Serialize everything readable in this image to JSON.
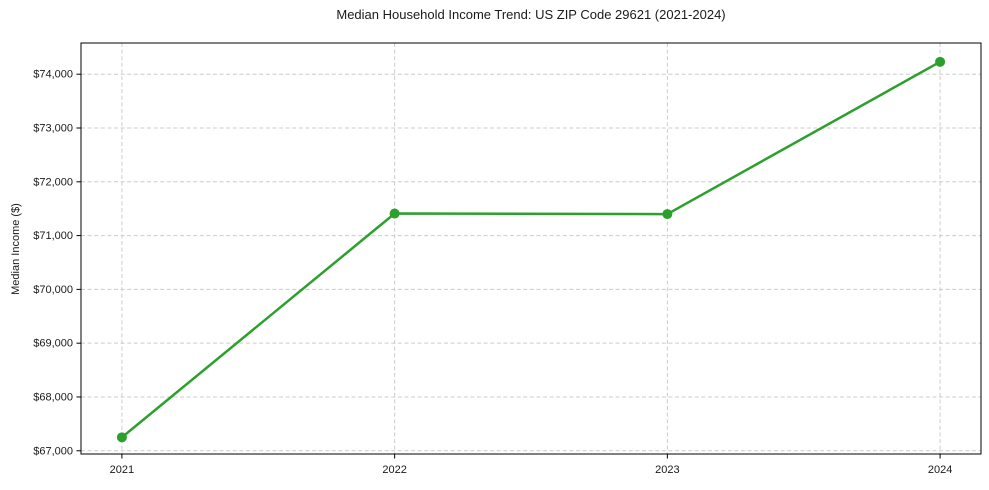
{
  "chart_data": {
    "type": "line",
    "title": "Median Household Income Trend: US ZIP Code 29621 (2021-2024)",
    "ylabel": "Median Income ($)",
    "categories": [
      "2021",
      "2022",
      "2023",
      "2024"
    ],
    "x": [
      2021,
      2022,
      2023,
      2024
    ],
    "series": [
      {
        "name": "Median household income",
        "values": [
          67250,
          71410,
          71400,
          74230
        ]
      }
    ],
    "y_ticks": [
      67000,
      68000,
      69000,
      70000,
      71000,
      72000,
      73000,
      74000
    ],
    "y_tick_labels": [
      "$67,000",
      "$68,000",
      "$69,000",
      "$70,000",
      "$71,000",
      "$72,000",
      "$73,000",
      "$74,000"
    ],
    "xlim": [
      2020.85,
      2024.15
    ],
    "ylim": [
      66940,
      74580
    ],
    "grid": true,
    "grid_style": "dashed",
    "legend_position": "none",
    "marker": "circle",
    "colors": {
      "line": "#2ca02c",
      "marker": "#2ca02c",
      "grid": "#cccccc",
      "spine": "#000000",
      "tick": "#000000",
      "text": "#1a1a1a",
      "background": "#ffffff"
    }
  }
}
